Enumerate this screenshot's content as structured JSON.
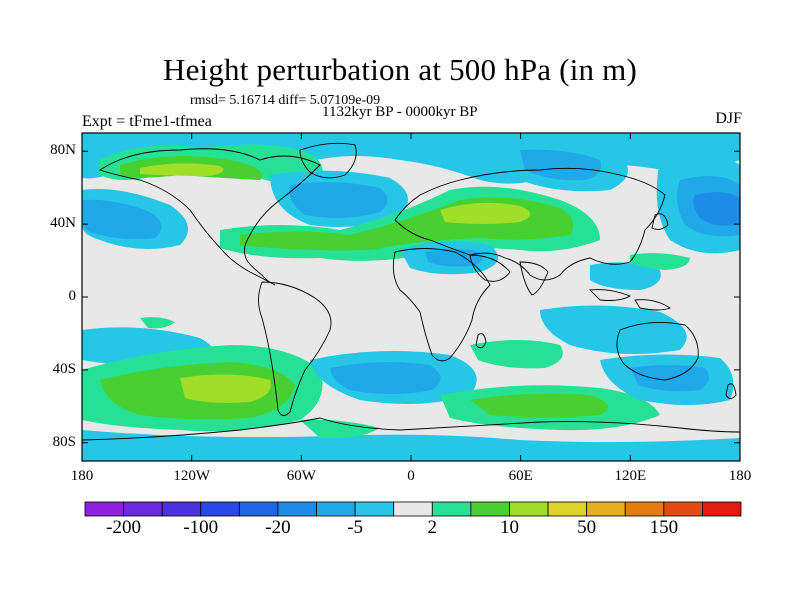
{
  "title": "Height perturbation at 500 hPa (in m)",
  "stats": "rmsd= 5.16714  diff= 5.07109e-09",
  "period": "1132kyr BP - 0000kyr BP",
  "experiment": "Expt = tFme1-tfmea",
  "season": "DJF",
  "map": {
    "lat_range": [
      -90,
      90
    ],
    "lon_range": [
      -180,
      180
    ],
    "lat_ticks": [
      {
        "value": 80,
        "label": "80N"
      },
      {
        "value": 40,
        "label": "40N"
      },
      {
        "value": 0,
        "label": "0"
      },
      {
        "value": -40,
        "label": "40S"
      },
      {
        "value": -80,
        "label": "80S"
      }
    ],
    "lon_ticks": [
      {
        "value": -180,
        "label": "180"
      },
      {
        "value": -120,
        "label": "120W"
      },
      {
        "value": -60,
        "label": "60W"
      },
      {
        "value": 0,
        "label": "0"
      },
      {
        "value": 60,
        "label": "60E"
      },
      {
        "value": 120,
        "label": "120E"
      },
      {
        "value": 180,
        "label": "180"
      }
    ]
  },
  "colorbar": {
    "colors": [
      "#8f20e0",
      "#6a2ae0",
      "#4b32e0",
      "#2a48e8",
      "#1f66e6",
      "#1c8ce6",
      "#20a8e8",
      "#26c6e6",
      "#e8e8e8",
      "#26e095",
      "#48d032",
      "#a0de2a",
      "#dcd228",
      "#e4b020",
      "#e47c12",
      "#e44a14",
      "#e41a10"
    ],
    "labels": [
      {
        "boundary": 1,
        "text": "-200"
      },
      {
        "boundary": 3,
        "text": "-100"
      },
      {
        "boundary": 5,
        "text": "-20"
      },
      {
        "boundary": 7,
        "text": "-5"
      },
      {
        "boundary": 9,
        "text": "2"
      },
      {
        "boundary": 11,
        "text": "10"
      },
      {
        "boundary": 13,
        "text": "50"
      },
      {
        "boundary": 15,
        "text": "150"
      }
    ]
  },
  "anomaly_colors": {
    "neutral": "#e8e8e8",
    "pos_weak": "#26e095",
    "pos_mid": "#48d032",
    "pos_strong": "#a0de2a",
    "neg_weak": "#26c6e6",
    "neg_mid": "#20a8e8",
    "neg_strong": "#1c8ce6"
  }
}
